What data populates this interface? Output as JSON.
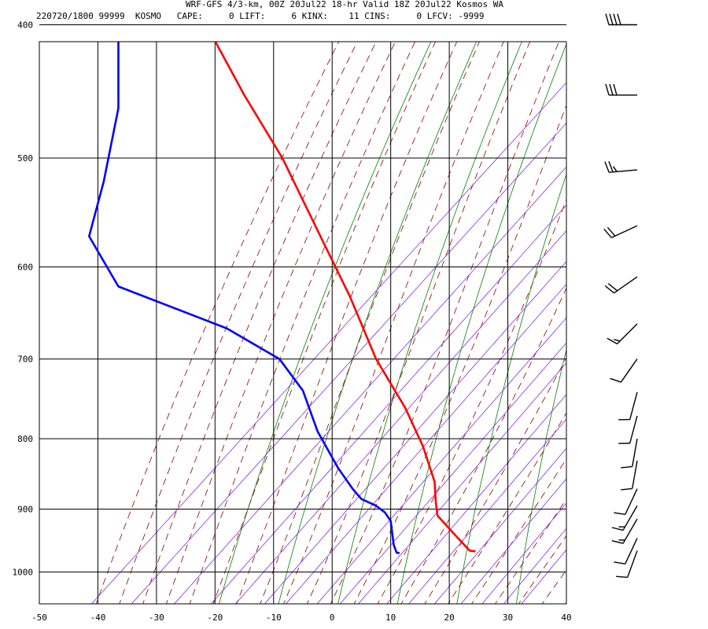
{
  "header": {
    "title": "WRF-GFS 4/3-km, 00Z 20Jul22 18-hr Valid 18Z 20Jul22 Kosmos WA",
    "info": "220720/1800 99999  KOSMO   CAPE:     0 LIFT:     6 KINX:    11 CINS:     0 LFCV: -9999"
  },
  "chart_data": {
    "type": "line",
    "title": "",
    "xlabel": "",
    "ylabel": "",
    "x_ticks": [
      -50,
      -40,
      -30,
      -20,
      -10,
      0,
      10,
      20,
      30,
      40
    ],
    "y_ticks": [
      400,
      500,
      600,
      700,
      800,
      900,
      1000
    ],
    "xlim": [
      -50,
      40
    ],
    "ylim": [
      1040,
      400
    ],
    "y_scale": "log",
    "grid": true,
    "series": [
      {
        "color": "#ff0000",
        "points": [
          [
            -21.5,
            400
          ],
          [
            -15,
            450
          ],
          [
            -8.5,
            500
          ],
          [
            -2,
            570
          ],
          [
            3,
            630
          ],
          [
            7.5,
            700
          ],
          [
            12.5,
            760
          ],
          [
            15.5,
            810
          ],
          [
            17.5,
            860
          ],
          [
            17.7,
            890
          ],
          [
            18,
            910
          ],
          [
            21,
            940
          ],
          [
            23.5,
            965
          ],
          [
            24.5,
            966
          ]
        ]
      },
      {
        "color": "#0000ff",
        "points": [
          [
            -36.5,
            400
          ],
          [
            -36.5,
            460
          ],
          [
            -39,
            520
          ],
          [
            -41.5,
            570
          ],
          [
            -36.5,
            620
          ],
          [
            -18,
            665
          ],
          [
            -9,
            700
          ],
          [
            -5,
            738
          ],
          [
            -2.5,
            790
          ],
          [
            1,
            840
          ],
          [
            3.5,
            870
          ],
          [
            5,
            885
          ],
          [
            7.5,
            895
          ],
          [
            9,
            905
          ],
          [
            10,
            918
          ],
          [
            10.5,
            955
          ],
          [
            11,
            968
          ],
          [
            11.5,
            969
          ]
        ]
      }
    ],
    "wind_barbs": [
      {
        "pressure": 400,
        "direction": 270,
        "speed_kt": 40
      },
      {
        "pressure": 450,
        "direction": 270,
        "speed_kt": 30
      },
      {
        "pressure": 510,
        "direction": 265,
        "speed_kt": 25
      },
      {
        "pressure": 560,
        "direction": 245,
        "speed_kt": 20
      },
      {
        "pressure": 610,
        "direction": 235,
        "speed_kt": 20
      },
      {
        "pressure": 660,
        "direction": 225,
        "speed_kt": 15
      },
      {
        "pressure": 700,
        "direction": 215,
        "speed_kt": 10
      },
      {
        "pressure": 740,
        "direction": 195,
        "speed_kt": 10
      },
      {
        "pressure": 770,
        "direction": 195,
        "speed_kt": 10
      },
      {
        "pressure": 800,
        "direction": 190,
        "speed_kt": 10
      },
      {
        "pressure": 830,
        "direction": 190,
        "speed_kt": 10
      },
      {
        "pressure": 870,
        "direction": 205,
        "speed_kt": 10
      },
      {
        "pressure": 895,
        "direction": 210,
        "speed_kt": 15
      },
      {
        "pressure": 915,
        "direction": 210,
        "speed_kt": 15
      },
      {
        "pressure": 945,
        "direction": 205,
        "speed_kt": 10
      },
      {
        "pressure": 965,
        "direction": 200,
        "speed_kt": 10
      }
    ],
    "colors": {
      "frame": "#000000",
      "dry_adiabat": "#008000",
      "moist_adiabat": "#8b0000",
      "mixing_ratio": "#8a2be2"
    }
  }
}
